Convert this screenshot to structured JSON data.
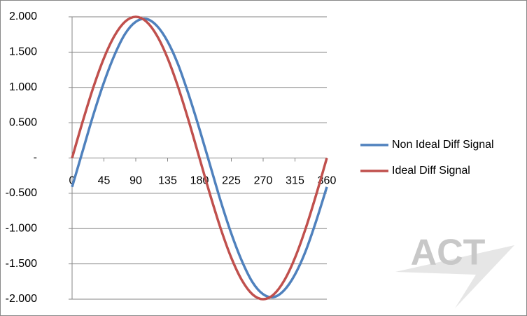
{
  "chart_data": {
    "type": "line",
    "x": [
      0,
      15,
      30,
      45,
      60,
      75,
      90,
      105,
      120,
      135,
      150,
      165,
      180,
      195,
      210,
      225,
      240,
      255,
      270,
      285,
      300,
      315,
      330,
      345,
      360
    ],
    "series": [
      {
        "name": "Non Ideal Diff Signal",
        "color": "#4f81bd",
        "values": [
          -0.41,
          0.1,
          0.61,
          1.07,
          1.46,
          1.76,
          1.93,
          1.97,
          1.87,
          1.65,
          1.32,
          0.89,
          0.41,
          -0.1,
          -0.61,
          -1.07,
          -1.46,
          -1.76,
          -1.93,
          -1.97,
          -1.87,
          -1.65,
          -1.32,
          -0.89,
          -0.41
        ]
      },
      {
        "name": "Ideal Diff Signal",
        "color": "#c0504d",
        "values": [
          0,
          0.518,
          1,
          1.414,
          1.732,
          1.932,
          2,
          1.932,
          1.732,
          1.414,
          1,
          0.518,
          0,
          -0.518,
          -1,
          -1.414,
          -1.732,
          -1.932,
          -2,
          -1.932,
          -1.732,
          -1.414,
          -1,
          -0.518,
          0
        ]
      }
    ],
    "xlim": [
      0,
      360
    ],
    "xticks": [
      0,
      45,
      90,
      135,
      180,
      225,
      270,
      315,
      360
    ],
    "ylim": [
      -2,
      2
    ],
    "yticks": [
      {
        "value": -2,
        "label": "-2.000"
      },
      {
        "value": -1.5,
        "label": "-1.500"
      },
      {
        "value": -1,
        "label": "-1.000"
      },
      {
        "value": -0.5,
        "label": "-0.500"
      },
      {
        "value": 0,
        "label": "-"
      },
      {
        "value": 0.5,
        "label": "0.500"
      },
      {
        "value": 1,
        "label": "1.000"
      },
      {
        "value": 1.5,
        "label": "1.500"
      },
      {
        "value": 2,
        "label": "2.000"
      }
    ],
    "grid": true,
    "legend": "right",
    "watermark": "ACT"
  }
}
